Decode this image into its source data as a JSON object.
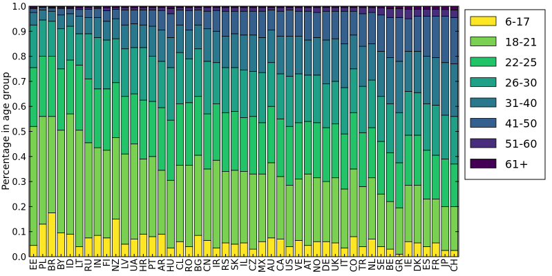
{
  "chart_data": {
    "type": "bar",
    "stacked": true,
    "ylabel": "Percentage in age group",
    "xlabel": "",
    "ylim": [
      0,
      1
    ],
    "yticks": [
      0.0,
      0.1,
      0.2,
      0.3,
      0.4,
      0.5,
      0.6,
      0.7,
      0.8,
      0.9,
      1.0
    ],
    "ytick_labels": [
      "0.0",
      "0.1",
      "0.2",
      "0.3",
      "0.4",
      "0.5",
      "0.6",
      "0.7",
      "0.8",
      "0.9",
      "1.0"
    ],
    "grid": false,
    "legend_position": "right",
    "categories": [
      "EE",
      "PL",
      "BR",
      "BY",
      "ID",
      "LT",
      "RU",
      "IN",
      "FI",
      "NZ",
      "LV",
      "UA",
      "HR",
      "PT",
      "AR",
      "HU",
      "CL",
      "RO",
      "BG",
      "CN",
      "IR",
      "RS",
      "SK",
      "IL",
      "CZ",
      "MX",
      "AU",
      "CA",
      "US",
      "VE",
      "AT",
      "NO",
      "DE",
      "UK",
      "IT",
      "CO",
      "TR",
      "NL",
      "SE",
      "BE",
      "GR",
      "IE",
      "DK",
      "ES",
      "FR",
      "JP",
      "CH"
    ],
    "series": [
      {
        "name": "6-17",
        "color": "#fde725",
        "values": [
          0.045,
          0.13,
          0.175,
          0.095,
          0.09,
          0.04,
          0.075,
          0.085,
          0.075,
          0.15,
          0.05,
          0.07,
          0.09,
          0.08,
          0.09,
          0.035,
          0.06,
          0.04,
          0.085,
          0.065,
          0.035,
          0.055,
          0.05,
          0.055,
          0.03,
          0.06,
          0.075,
          0.07,
          0.04,
          0.065,
          0.045,
          0.06,
          0.06,
          0.055,
          0.035,
          0.08,
          0.04,
          0.07,
          0.04,
          0.03,
          0.01,
          0.06,
          0.055,
          0.04,
          0.055,
          0.025,
          0.025
        ]
      },
      {
        "name": "18-21",
        "color": "#7ad151",
        "values": [
          0.475,
          0.43,
          0.385,
          0.41,
          0.48,
          0.465,
          0.38,
          0.35,
          0.35,
          0.325,
          0.36,
          0.38,
          0.3,
          0.32,
          0.255,
          0.27,
          0.305,
          0.325,
          0.32,
          0.285,
          0.35,
          0.285,
          0.295,
          0.285,
          0.3,
          0.27,
          0.3,
          0.25,
          0.245,
          0.245,
          0.285,
          0.255,
          0.24,
          0.26,
          0.235,
          0.27,
          0.24,
          0.245,
          0.21,
          0.19,
          0.185,
          0.225,
          0.23,
          0.19,
          0.175,
          0.175,
          0.175
        ]
      },
      {
        "name": "22-25",
        "color": "#22c369",
        "values": [
          0.235,
          0.24,
          0.24,
          0.245,
          0.215,
          0.26,
          0.255,
          0.235,
          0.245,
          0.22,
          0.23,
          0.2,
          0.235,
          0.22,
          0.25,
          0.24,
          0.245,
          0.25,
          0.235,
          0.22,
          0.225,
          0.235,
          0.235,
          0.215,
          0.23,
          0.205,
          0.225,
          0.23,
          0.235,
          0.225,
          0.21,
          0.22,
          0.215,
          0.215,
          0.22,
          0.225,
          0.215,
          0.2,
          0.21,
          0.195,
          0.18,
          0.2,
          0.2,
          0.195,
          0.175,
          0.19,
          0.17
        ]
      },
      {
        "name": "26-30",
        "color": "#1fa187",
        "values": [
          0.17,
          0.145,
          0.14,
          0.16,
          0.135,
          0.125,
          0.18,
          0.205,
          0.195,
          0.175,
          0.19,
          0.185,
          0.21,
          0.18,
          0.185,
          0.21,
          0.205,
          0.175,
          0.19,
          0.21,
          0.165,
          0.18,
          0.175,
          0.19,
          0.18,
          0.2,
          0.175,
          0.18,
          0.2,
          0.195,
          0.185,
          0.19,
          0.175,
          0.17,
          0.185,
          0.175,
          0.185,
          0.19,
          0.18,
          0.195,
          0.2,
          0.175,
          0.17,
          0.185,
          0.2,
          0.175,
          0.19
        ]
      },
      {
        "name": "31-40",
        "color": "#2a788e",
        "values": [
          0.05,
          0.04,
          0.04,
          0.055,
          0.05,
          0.07,
          0.065,
          0.08,
          0.075,
          0.08,
          0.095,
          0.095,
          0.09,
          0.12,
          0.125,
          0.12,
          0.11,
          0.115,
          0.095,
          0.13,
          0.125,
          0.125,
          0.135,
          0.14,
          0.145,
          0.14,
          0.13,
          0.15,
          0.16,
          0.15,
          0.14,
          0.15,
          0.175,
          0.17,
          0.175,
          0.135,
          0.16,
          0.145,
          0.18,
          0.185,
          0.205,
          0.16,
          0.165,
          0.19,
          0.19,
          0.21,
          0.21
        ]
      },
      {
        "name": "41-50",
        "color": "#35608d",
        "values": [
          0.015,
          0.01,
          0.012,
          0.025,
          0.02,
          0.027,
          0.033,
          0.035,
          0.042,
          0.038,
          0.06,
          0.055,
          0.06,
          0.065,
          0.078,
          0.095,
          0.06,
          0.078,
          0.06,
          0.07,
          0.083,
          0.1,
          0.09,
          0.095,
          0.095,
          0.105,
          0.08,
          0.1,
          0.105,
          0.1,
          0.115,
          0.1,
          0.115,
          0.11,
          0.13,
          0.095,
          0.13,
          0.125,
          0.145,
          0.16,
          0.175,
          0.13,
          0.14,
          0.16,
          0.165,
          0.185,
          0.185
        ]
      },
      {
        "name": "51-60",
        "color": "#472d7b",
        "values": [
          0.005,
          0.003,
          0.004,
          0.006,
          0.005,
          0.007,
          0.007,
          0.006,
          0.012,
          0.007,
          0.01,
          0.009,
          0.01,
          0.01,
          0.012,
          0.02,
          0.01,
          0.012,
          0.01,
          0.015,
          0.012,
          0.015,
          0.015,
          0.015,
          0.015,
          0.015,
          0.01,
          0.015,
          0.01,
          0.015,
          0.015,
          0.02,
          0.015,
          0.015,
          0.015,
          0.015,
          0.025,
          0.02,
          0.028,
          0.035,
          0.035,
          0.038,
          0.028,
          0.028,
          0.028,
          0.027,
          0.03
        ]
      },
      {
        "name": "61+",
        "color": "#440154",
        "values": [
          0.005,
          0.002,
          0.004,
          0.004,
          0.005,
          0.006,
          0.005,
          0.004,
          0.006,
          0.005,
          0.005,
          0.006,
          0.005,
          0.005,
          0.005,
          0.01,
          0.005,
          0.005,
          0.005,
          0.005,
          0.005,
          0.005,
          0.005,
          0.005,
          0.005,
          0.005,
          0.005,
          0.005,
          0.005,
          0.005,
          0.005,
          0.005,
          0.005,
          0.005,
          0.005,
          0.005,
          0.005,
          0.005,
          0.007,
          0.01,
          0.01,
          0.012,
          0.012,
          0.012,
          0.012,
          0.013,
          0.015
        ]
      }
    ]
  }
}
